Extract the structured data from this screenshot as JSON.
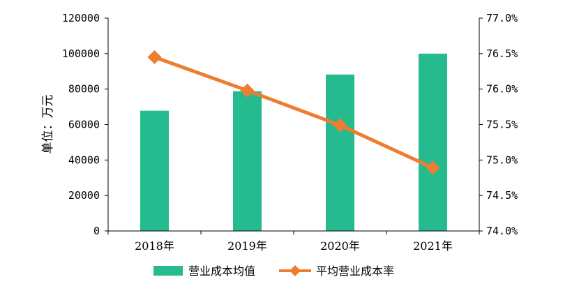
{
  "chart_data": {
    "type": "bar+line",
    "categories": [
      "2018年",
      "2019年",
      "2020年",
      "2021年"
    ],
    "series": [
      {
        "name": "营业成本均值",
        "type": "bar",
        "axis": "left",
        "color": "#26bb8f",
        "values": [
          67800,
          78800,
          88200,
          100000
        ]
      },
      {
        "name": "平均营业成本率",
        "type": "line",
        "axis": "right",
        "color": "#ee7d31",
        "marker": "diamond",
        "values": [
          76.45,
          75.98,
          75.49,
          74.89
        ]
      }
    ],
    "ylabel": "单位：万元",
    "ylim": [
      0,
      120000
    ],
    "yticks": [
      "0",
      "20000",
      "40000",
      "60000",
      "80000",
      "100000",
      "120000"
    ],
    "y2lim": [
      74.0,
      77.0
    ],
    "y2ticks": [
      "74.0%",
      "74.5%",
      "75.0%",
      "75.5%",
      "76.0%",
      "76.5%",
      "77.0%"
    ],
    "grid": false,
    "legend_position": "bottom"
  }
}
